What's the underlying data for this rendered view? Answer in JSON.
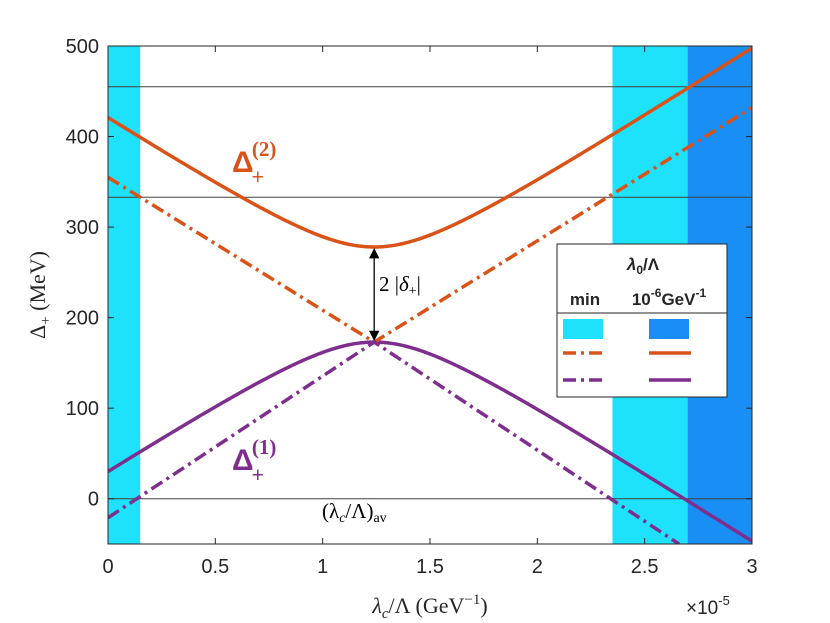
{
  "chart_data": {
    "type": "line",
    "xlabel": "λc/Λ (GeV⁻¹)",
    "xlabel_parts": {
      "main": "λ",
      "sub": "c",
      "rest": "/Λ (GeV",
      "sup": "−1",
      "close": ")"
    },
    "ylabel": "Δ+ (MeV)",
    "ylabel_parts": {
      "main": "Δ",
      "sub": "+",
      "rest": " (MeV)"
    },
    "x_multiplier": "×10",
    "x_multiplier_exp": "-5",
    "xlim": [
      0,
      3
    ],
    "ylim": [
      -50,
      500
    ],
    "x_ticks": [
      0,
      0.5,
      1,
      1.5,
      2,
      2.5,
      3
    ],
    "x_tick_labels": [
      "0",
      "0.5",
      "1",
      "1.5",
      "2",
      "2.5",
      "3"
    ],
    "y_ticks": [
      0,
      100,
      200,
      300,
      400,
      500
    ],
    "y_tick_labels": [
      "0",
      "100",
      "200",
      "300",
      "400",
      "500"
    ],
    "horizontal_lines": [
      0,
      333,
      455
    ],
    "colors": {
      "upper": "#d95319",
      "lower": "#7e2f8e",
      "band_min": "#1ee2fb",
      "band_1e6": "#198ff5",
      "axis": "#262626",
      "hline": "#404040"
    },
    "bands": [
      {
        "name": "min",
        "color": "#1ee2fb",
        "ranges": [
          [
            0,
            0.15
          ],
          [
            2.35,
            2.7
          ]
        ]
      },
      {
        "name": "1e-6",
        "color": "#198ff5",
        "ranges": [
          [
            2.7,
            3.0
          ]
        ]
      }
    ],
    "crossing": {
      "x": 1.24,
      "y_low": 173,
      "y_high": 278
    },
    "series": [
      {
        "name": "Δ+(2)",
        "style": "solid",
        "color": "#d95319",
        "formula": "hyperbola_upper",
        "x": [
          0,
          0.25,
          0.5,
          0.75,
          1.0,
          1.24,
          1.5,
          1.75,
          2.0,
          2.25,
          2.5,
          2.75,
          3.0
        ],
        "values": [
          421,
          379,
          340,
          307,
          284,
          278,
          288,
          314,
          348,
          386,
          425,
          466,
          497
        ]
      },
      {
        "name": "Δ+(1)",
        "style": "solid",
        "color": "#7e2f8e",
        "formula": "hyperbola_lower",
        "x": [
          0,
          0.25,
          0.5,
          0.75,
          1.0,
          1.24,
          1.5,
          1.75,
          2.0,
          2.25,
          2.5,
          2.75,
          3.0
        ],
        "values": [
          32,
          63,
          96,
          129,
          158,
          173,
          164,
          137,
          105,
          72,
          38,
          4,
          -43
        ]
      },
      {
        "name": "diabatic upper",
        "style": "dashdot",
        "color": "#d95319",
        "x": [
          0,
          1.24,
          3.0
        ],
        "values": [
          355,
          173,
          432
        ]
      },
      {
        "name": "diabatic lower",
        "style": "dashdot",
        "color": "#7e2f8e",
        "x": [
          0,
          1.24,
          2.66
        ],
        "values": [
          -21,
          173,
          -50
        ]
      }
    ],
    "annotations": {
      "upper_label": {
        "main": "Δ",
        "sub": "+",
        "sup": "(2)"
      },
      "lower_label": {
        "main": "Δ",
        "sub": "+",
        "sup": "(1)"
      },
      "gap_label": "2 |δ+|",
      "gap_parts": {
        "pre": "2 |",
        "main": "δ",
        "sub": "+",
        "post": "|"
      },
      "avg_label": "(λc/Λ)av",
      "avg_parts": {
        "pre": "(λ",
        "sub": "c",
        "rest": "/Λ)",
        "sub2": "av"
      }
    },
    "legend": {
      "position": "right",
      "title": "λ0/Λ",
      "title_parts": {
        "main": "λ",
        "sub": "0",
        "rest": "/Λ"
      },
      "col1": "min",
      "col2_parts": {
        "pre": "10",
        "sup": "-6",
        "rest": "GeV",
        "sup2": "-1"
      }
    }
  }
}
